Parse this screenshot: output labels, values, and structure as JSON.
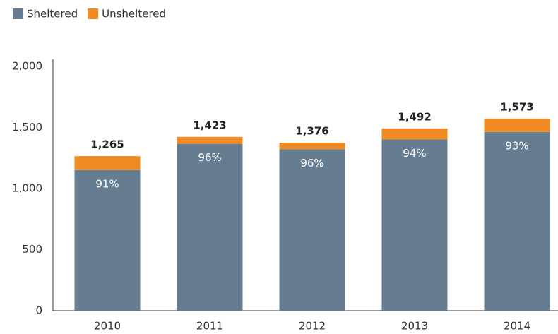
{
  "chart_data": {
    "type": "stacked_bar",
    "categories": [
      "2010",
      "2011",
      "2012",
      "2013",
      "2014"
    ],
    "series": [
      {
        "name": "Sheltered",
        "color": "#667d91",
        "values": [
          1151,
          1366,
          1321,
          1402,
          1463
        ]
      },
      {
        "name": "Unsheltered",
        "color": "#f08a24",
        "values": [
          114,
          57,
          55,
          90,
          110
        ]
      }
    ],
    "totals": [
      1265,
      1423,
      1376,
      1492,
      1573
    ],
    "totals_value_labels": [
      "1,265",
      "1,423",
      "1,376",
      "1,492",
      "1,573"
    ],
    "shares": [
      91,
      96,
      96,
      94,
      93
    ],
    "shares_value_labels": [
      "91%",
      "96%",
      "96%",
      "94%",
      "93%"
    ],
    "ylim": [
      0,
      2000
    ],
    "yticks": [
      0,
      500,
      {
        "value": 1000,
        "label": "1,000"
      },
      {
        "value": 1500,
        "label": "1,500"
      },
      {
        "value": 2000,
        "label": "2,000"
      }
    ],
    "grid": false
  }
}
